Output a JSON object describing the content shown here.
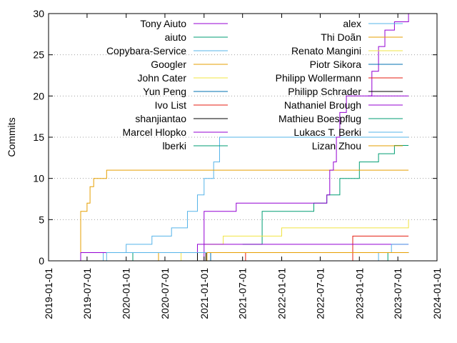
{
  "chart_data": {
    "type": "line",
    "line_shape": "step",
    "title": "",
    "xlabel": "",
    "ylabel": "Commits",
    "xlim": [
      "2019-01-01",
      "2024-01-01"
    ],
    "ylim": [
      0,
      30
    ],
    "x_ticks": [
      "2019-01-01",
      "2019-07-01",
      "2020-01-01",
      "2020-07-01",
      "2021-01-01",
      "2021-07-01",
      "2022-01-01",
      "2022-07-01",
      "2023-01-01",
      "2023-07-01",
      "2024-01-01"
    ],
    "y_ticks": [
      0,
      5,
      10,
      15,
      20,
      25,
      30
    ],
    "grid": "horizontal dotted",
    "legend_placement": "top, two columns",
    "series": [
      {
        "name": "Tony Aiuto",
        "color": "#9400d3",
        "points": [
          [
            "2023-02-10",
            20
          ],
          [
            "2023-03-01",
            23
          ],
          [
            "2023-04-01",
            26
          ],
          [
            "2023-05-01",
            28
          ],
          [
            "2023-06-15",
            29
          ],
          [
            "2023-08-20",
            31
          ]
        ]
      },
      {
        "name": "aiuto",
        "color": "#009e73",
        "points": [
          [
            "2021-07-01",
            2
          ],
          [
            "2021-10-01",
            6
          ],
          [
            "2022-06-01",
            7
          ],
          [
            "2022-08-01",
            8
          ],
          [
            "2022-10-01",
            10
          ],
          [
            "2023-01-01",
            12
          ],
          [
            "2023-04-01",
            13
          ],
          [
            "2023-06-15",
            14
          ],
          [
            "2023-08-20",
            14
          ]
        ]
      },
      {
        "name": "Copybara-Service",
        "color": "#56b4e9",
        "points": [
          [
            "2019-07-15",
            0
          ],
          [
            "2019-09-15",
            1
          ],
          [
            "2020-01-01",
            2
          ],
          [
            "2020-05-01",
            3
          ],
          [
            "2020-08-01",
            4
          ],
          [
            "2020-10-15",
            6
          ],
          [
            "2020-12-01",
            8
          ],
          [
            "2021-01-01",
            10
          ],
          [
            "2021-02-15",
            12
          ],
          [
            "2021-03-15",
            15
          ],
          [
            "2023-08-20",
            15
          ]
        ]
      },
      {
        "name": "Googler",
        "color": "#e69f00",
        "points": [
          [
            "2019-05-15",
            0
          ],
          [
            "2019-06-01",
            6
          ],
          [
            "2019-07-01",
            7
          ],
          [
            "2019-07-15",
            9
          ],
          [
            "2019-08-01",
            10
          ],
          [
            "2019-10-01",
            11
          ],
          [
            "2023-08-20",
            11
          ]
        ]
      },
      {
        "name": "John Cater",
        "color": "#f0e442",
        "points": [
          [
            "2021-01-01",
            2
          ],
          [
            "2021-04-01",
            3
          ],
          [
            "2021-10-15",
            3
          ],
          [
            "2022-01-01",
            4
          ],
          [
            "2023-07-20",
            4
          ],
          [
            "2023-08-20",
            5
          ]
        ]
      },
      {
        "name": "Yun Peng",
        "color": "#0072b2",
        "points": [
          [
            "2021-01-01",
            0
          ],
          [
            "2021-01-15",
            1
          ],
          [
            "2023-08-20",
            1
          ]
        ]
      },
      {
        "name": "Ivo List",
        "color": "#e51e10",
        "points": [
          [
            "2022-11-15",
            0
          ],
          [
            "2022-12-01",
            3
          ],
          [
            "2023-08-20",
            3
          ]
        ]
      },
      {
        "name": "shanjiantao",
        "color": "#000000",
        "points": [
          [
            "2021-01-01",
            0
          ],
          [
            "2021-01-10",
            1
          ],
          [
            "2023-08-20",
            1
          ]
        ]
      },
      {
        "name": "Marcel Hlopko",
        "color": "#9400d3",
        "points": [
          [
            "2019-05-15",
            0
          ],
          [
            "2019-06-01",
            1
          ],
          [
            "2020-05-01",
            1
          ],
          [
            "2020-12-01",
            2
          ],
          [
            "2021-06-01",
            2
          ],
          [
            "2023-08-20",
            2
          ]
        ]
      },
      {
        "name": "lberki",
        "color": "#009e73",
        "points": [
          [
            "2020-01-01",
            0
          ],
          [
            "2020-02-01",
            1
          ],
          [
            "2023-08-20",
            1
          ]
        ]
      },
      {
        "name": "alex",
        "color": "#56b4e9",
        "points": [
          [
            "2023-02-01",
            0
          ],
          [
            "2023-04-01",
            1
          ],
          [
            "2023-06-01",
            2
          ],
          [
            "2023-08-20",
            2
          ]
        ]
      },
      {
        "name": "Thi Doãn",
        "color": "#e69f00",
        "points": [
          [
            "2020-05-01",
            0
          ],
          [
            "2020-06-01",
            1
          ],
          [
            "2023-08-20",
            1
          ]
        ]
      },
      {
        "name": "Renato Mangini",
        "color": "#f0e442",
        "points": [
          [
            "2020-09-01",
            0
          ],
          [
            "2020-09-15",
            1
          ],
          [
            "2023-08-20",
            1
          ]
        ]
      },
      {
        "name": "Piotr Sikora",
        "color": "#0072b2",
        "points": [
          [
            "2021-01-01",
            0
          ],
          [
            "2021-02-01",
            1
          ],
          [
            "2023-08-20",
            1
          ]
        ]
      },
      {
        "name": "Philipp Wollermann",
        "color": "#e51e10",
        "points": [
          [
            "2021-07-01",
            0
          ],
          [
            "2021-07-15",
            1
          ],
          [
            "2023-08-20",
            1
          ]
        ]
      },
      {
        "name": "Philipp Schrader",
        "color": "#000000",
        "points": [
          [
            "2020-11-01",
            0
          ],
          [
            "2020-12-01",
            1
          ],
          [
            "2023-08-20",
            1
          ]
        ]
      },
      {
        "name": "Nathaniel Brough",
        "color": "#9400d3",
        "points": [
          [
            "2020-12-01",
            0
          ],
          [
            "2021-01-01",
            6
          ],
          [
            "2021-04-01",
            6
          ],
          [
            "2021-06-01",
            7
          ],
          [
            "2022-06-01",
            7
          ],
          [
            "2022-08-01",
            8
          ],
          [
            "2022-08-15",
            11
          ],
          [
            "2022-09-01",
            12
          ],
          [
            "2022-09-15",
            15
          ],
          [
            "2022-10-01",
            18
          ],
          [
            "2022-11-01",
            20
          ],
          [
            "2023-08-20",
            20
          ]
        ]
      },
      {
        "name": "Mathieu Boespflug",
        "color": "#009e73",
        "points": [
          [
            "2023-05-01",
            0
          ],
          [
            "2023-05-15",
            1
          ],
          [
            "2023-08-20",
            1
          ]
        ]
      },
      {
        "name": "Lukacs T. Berki",
        "color": "#56b4e9",
        "points": [
          [
            "2019-09-15",
            0
          ],
          [
            "2019-10-01",
            1
          ],
          [
            "2023-08-20",
            1
          ]
        ]
      },
      {
        "name": "Lizan Zhou",
        "color": "#e69f00",
        "points": [
          [
            "2021-01-01",
            0
          ],
          [
            "2021-01-15",
            1
          ],
          [
            "2023-08-20",
            1
          ]
        ]
      }
    ]
  }
}
